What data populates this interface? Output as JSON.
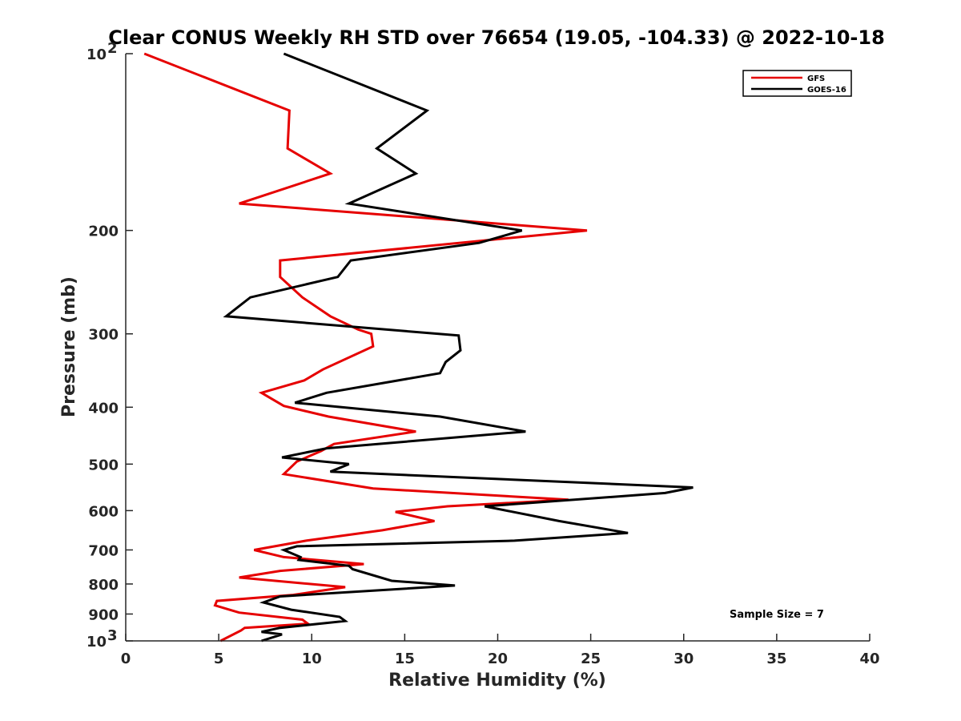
{
  "chart_data": {
    "type": "line",
    "title": "Clear CONUS Weekly RH STD over 76654 (19.05, -104.33) @ 2022-10-18",
    "xlabel": "Relative Humidity (%)",
    "ylabel": "Pressure (mb)",
    "xlim": [
      0,
      40
    ],
    "ylim": [
      100,
      1000
    ],
    "yscale": "log",
    "yreversed": true,
    "x_ticks": [
      "0",
      "5",
      "10",
      "15",
      "20",
      "25",
      "30",
      "35",
      "40"
    ],
    "y_ticks": [
      {
        "value": 100,
        "label": "10",
        "sup": "2"
      },
      {
        "value": 200,
        "label": "200",
        "sup": ""
      },
      {
        "value": 300,
        "label": "300",
        "sup": ""
      },
      {
        "value": 400,
        "label": "400",
        "sup": ""
      },
      {
        "value": 500,
        "label": "500",
        "sup": ""
      },
      {
        "value": 600,
        "label": "600",
        "sup": ""
      },
      {
        "value": 700,
        "label": "700",
        "sup": ""
      },
      {
        "value": 800,
        "label": "800",
        "sup": ""
      },
      {
        "value": 900,
        "label": "900",
        "sup": ""
      },
      {
        "value": 1000,
        "label": "10",
        "sup": "3"
      }
    ],
    "legend_position": "top-right",
    "annotation": "Sample Size = 7",
    "series": [
      {
        "name": "GFS",
        "color": "#e60000",
        "points": [
          [
            1.0,
            100
          ],
          [
            8.8,
            125
          ],
          [
            8.7,
            145
          ],
          [
            11.0,
            160
          ],
          [
            6.1,
            180
          ],
          [
            24.8,
            200
          ],
          [
            8.3,
            225
          ],
          [
            8.3,
            240
          ],
          [
            9.5,
            260
          ],
          [
            11.0,
            280
          ],
          [
            12.5,
            295
          ],
          [
            13.2,
            300
          ],
          [
            13.3,
            315
          ],
          [
            10.6,
            345
          ],
          [
            9.6,
            360
          ],
          [
            7.3,
            378
          ],
          [
            8.5,
            398
          ],
          [
            10.9,
            415
          ],
          [
            15.6,
            440
          ],
          [
            11.2,
            462
          ],
          [
            10.5,
            475
          ],
          [
            9.2,
            495
          ],
          [
            8.5,
            520
          ],
          [
            13.3,
            550
          ],
          [
            23.8,
            575
          ],
          [
            17.3,
            590
          ],
          [
            14.5,
            603
          ],
          [
            16.6,
            625
          ],
          [
            13.8,
            648
          ],
          [
            9.7,
            675
          ],
          [
            6.9,
            700
          ],
          [
            8.5,
            720
          ],
          [
            12.8,
            740
          ],
          [
            8.3,
            760
          ],
          [
            6.1,
            780
          ],
          [
            11.8,
            810
          ],
          [
            9.0,
            835
          ],
          [
            4.9,
            855
          ],
          [
            4.8,
            870
          ],
          [
            6.1,
            895
          ],
          [
            9.5,
            920
          ],
          [
            9.8,
            935
          ],
          [
            6.4,
            950
          ],
          [
            6.2,
            960
          ],
          [
            5.1,
            1000
          ]
        ]
      },
      {
        "name": "GOES-16",
        "color": "#000000",
        "points": [
          [
            8.5,
            100
          ],
          [
            16.2,
            125
          ],
          [
            13.5,
            145
          ],
          [
            15.6,
            160
          ],
          [
            12.0,
            180
          ],
          [
            21.3,
            200
          ],
          [
            19.0,
            210
          ],
          [
            12.1,
            225
          ],
          [
            11.4,
            240
          ],
          [
            6.7,
            260
          ],
          [
            5.4,
            280
          ],
          [
            17.9,
            302
          ],
          [
            18.0,
            320
          ],
          [
            17.2,
            335
          ],
          [
            16.9,
            350
          ],
          [
            10.8,
            378
          ],
          [
            9.1,
            393
          ],
          [
            16.9,
            415
          ],
          [
            21.5,
            440
          ],
          [
            10.8,
            470
          ],
          [
            8.4,
            487
          ],
          [
            12.0,
            500
          ],
          [
            11.0,
            515
          ],
          [
            30.5,
            548
          ],
          [
            29.0,
            560
          ],
          [
            19.3,
            590
          ],
          [
            23.3,
            625
          ],
          [
            27.0,
            655
          ],
          [
            20.9,
            675
          ],
          [
            9.2,
            690
          ],
          [
            8.5,
            700
          ],
          [
            9.4,
            720
          ],
          [
            9.3,
            728
          ],
          [
            12.0,
            745
          ],
          [
            12.2,
            755
          ],
          [
            14.3,
            790
          ],
          [
            17.7,
            805
          ],
          [
            8.3,
            840
          ],
          [
            7.4,
            860
          ],
          [
            8.9,
            885
          ],
          [
            11.5,
            910
          ],
          [
            11.8,
            925
          ],
          [
            8.3,
            950
          ],
          [
            7.3,
            965
          ],
          [
            8.4,
            975
          ],
          [
            7.3,
            1000
          ]
        ]
      }
    ]
  }
}
